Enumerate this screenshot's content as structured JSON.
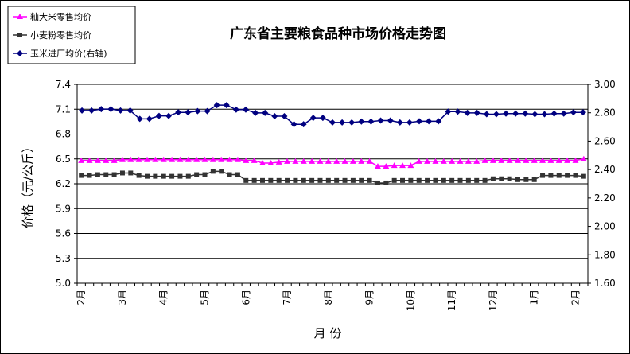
{
  "chart_data": {
    "type": "line",
    "title": "广东省主要粮食品种市场价格走势图",
    "xlabel": "月 份",
    "ylabel": "价格（元/公斤）",
    "ylim": [
      5.0,
      7.4
    ],
    "yticks": [
      "5.0",
      "5.3",
      "5.6",
      "5.9",
      "6.2",
      "6.5",
      "6.8",
      "7.1",
      "7.4"
    ],
    "y2lim": [
      1.6,
      3.0
    ],
    "y2ticks": [
      "1.60",
      "1.80",
      "2.00",
      "2.20",
      "2.40",
      "2.60",
      "2.80",
      "3.00"
    ],
    "xticks": [
      {
        "i": 0,
        "label": "2月"
      },
      {
        "i": 5,
        "label": "3月"
      },
      {
        "i": 10,
        "label": "4月"
      },
      {
        "i": 15,
        "label": "5月"
      },
      {
        "i": 20,
        "label": "6月"
      },
      {
        "i": 25,
        "label": "7月"
      },
      {
        "i": 30,
        "label": "8月"
      },
      {
        "i": 35,
        "label": "9月"
      },
      {
        "i": 40,
        "label": "10月"
      },
      {
        "i": 45,
        "label": "11月"
      },
      {
        "i": 50,
        "label": "12月"
      },
      {
        "i": 55,
        "label": "1月"
      },
      {
        "i": 60,
        "label": "2月"
      }
    ],
    "grid": "horizontal",
    "legend_position": "top-left",
    "series": [
      {
        "name": "籼大米零售均价",
        "axis": "left",
        "color": "#ff00ff",
        "marker": "triangle",
        "values": [
          6.48,
          6.48,
          6.48,
          6.48,
          6.48,
          6.49,
          6.49,
          6.49,
          6.49,
          6.49,
          6.49,
          6.49,
          6.49,
          6.49,
          6.49,
          6.49,
          6.49,
          6.49,
          6.49,
          6.49,
          6.48,
          6.48,
          6.45,
          6.45,
          6.46,
          6.47,
          6.47,
          6.47,
          6.47,
          6.47,
          6.47,
          6.47,
          6.47,
          6.47,
          6.47,
          6.47,
          6.41,
          6.41,
          6.42,
          6.42,
          6.42,
          6.47,
          6.47,
          6.47,
          6.47,
          6.47,
          6.47,
          6.47,
          6.47,
          6.48,
          6.48,
          6.48,
          6.48,
          6.48,
          6.48,
          6.48,
          6.48,
          6.48,
          6.48,
          6.48,
          6.48,
          6.5
        ]
      },
      {
        "name": "小麦粉零售均价",
        "axis": "left",
        "color": "#333333",
        "marker": "square",
        "values": [
          6.3,
          6.3,
          6.31,
          6.31,
          6.31,
          6.33,
          6.33,
          6.3,
          6.29,
          6.29,
          6.29,
          6.29,
          6.29,
          6.29,
          6.31,
          6.31,
          6.35,
          6.35,
          6.31,
          6.31,
          6.24,
          6.24,
          6.24,
          6.24,
          6.24,
          6.24,
          6.24,
          6.24,
          6.24,
          6.24,
          6.24,
          6.24,
          6.24,
          6.24,
          6.24,
          6.24,
          6.21,
          6.21,
          6.24,
          6.24,
          6.24,
          6.24,
          6.24,
          6.24,
          6.24,
          6.24,
          6.24,
          6.24,
          6.24,
          6.24,
          6.26,
          6.26,
          6.26,
          6.25,
          6.25,
          6.25,
          6.3,
          6.3,
          6.3,
          6.3,
          6.3,
          6.29
        ]
      },
      {
        "name": "玉米进厂均价(右轴)",
        "axis": "right",
        "color": "#000080",
        "marker": "diamond",
        "values": [
          2.816,
          2.816,
          2.826,
          2.826,
          2.816,
          2.816,
          2.757,
          2.757,
          2.778,
          2.778,
          2.803,
          2.803,
          2.812,
          2.812,
          2.854,
          2.854,
          2.822,
          2.822,
          2.799,
          2.799,
          2.776,
          2.776,
          2.719,
          2.719,
          2.764,
          2.764,
          2.732,
          2.732,
          2.732,
          2.738,
          2.738,
          2.745,
          2.745,
          2.732,
          2.732,
          2.74,
          2.74,
          2.74,
          2.808,
          2.808,
          2.799,
          2.799,
          2.79,
          2.79,
          2.794,
          2.794,
          2.794,
          2.79,
          2.79,
          2.794,
          2.794,
          2.803,
          2.803
        ]
      }
    ]
  }
}
